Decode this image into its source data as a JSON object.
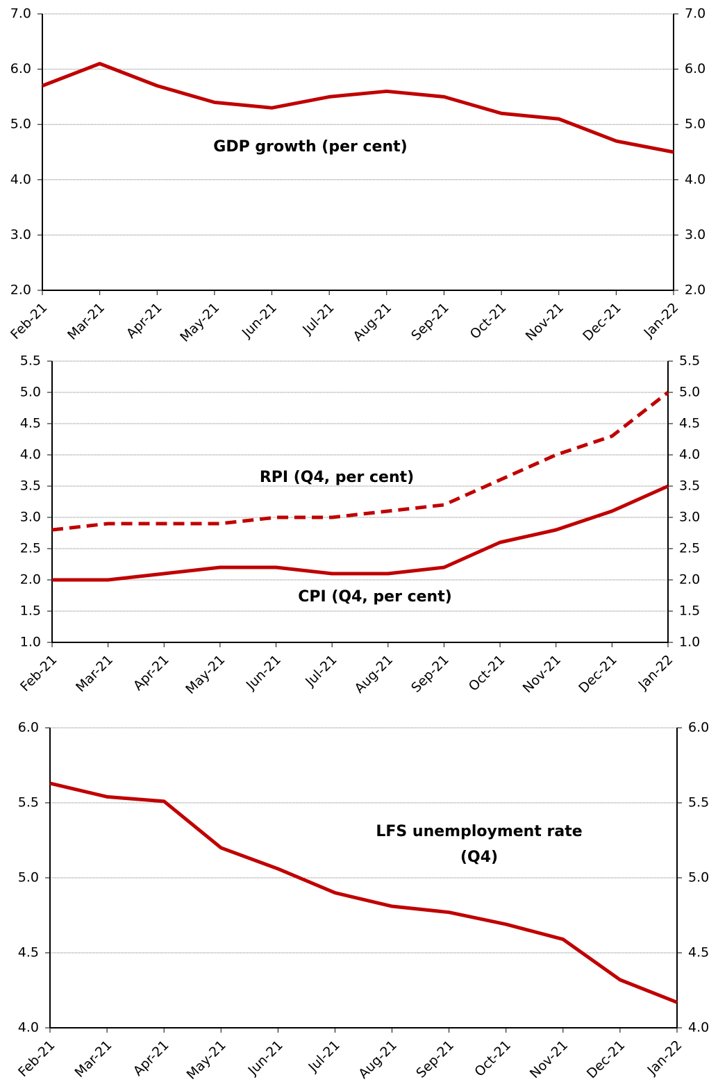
{
  "chart_data": [
    {
      "type": "line",
      "annotations": [
        "GDP growth (per cent)"
      ],
      "categories": [
        "Feb-21",
        "Mar-21",
        "Apr-21",
        "May-21",
        "Jun-21",
        "Jul-21",
        "Aug-21",
        "Sep-21",
        "Oct-21",
        "Nov-21",
        "Dec-21",
        "Jan-22"
      ],
      "series": [
        {
          "name": "GDP growth",
          "color": "#c00000",
          "style": "solid",
          "values": [
            5.7,
            6.1,
            5.7,
            5.4,
            5.3,
            5.5,
            5.6,
            5.5,
            5.2,
            5.1,
            4.7,
            4.5
          ]
        }
      ],
      "ylim": [
        2,
        7
      ],
      "yticks": [
        {
          "value": 2,
          "label": "2.0"
        },
        {
          "value": 3,
          "label": "3.0"
        },
        {
          "value": 4,
          "label": "4.0"
        },
        {
          "value": 5,
          "label": "5.0"
        },
        {
          "value": 6,
          "label": "6.0"
        },
        {
          "value": 7,
          "label": "7.0"
        }
      ],
      "grid": true,
      "right_axis": true
    },
    {
      "type": "line",
      "categories": [
        "Feb-21",
        "Mar-21",
        "Apr-21",
        "May-21",
        "Jun-21",
        "Jul-21",
        "Aug-21",
        "Sep-21",
        "Oct-21",
        "Nov-21",
        "Dec-21",
        "Jan-22"
      ],
      "series": [
        {
          "name": "RPI (Q4, per cent)",
          "color": "#c00000",
          "style": "dashed",
          "values": [
            2.8,
            2.9,
            2.9,
            2.9,
            3.0,
            3.0,
            3.1,
            3.2,
            3.6,
            4.0,
            4.3,
            5.0
          ]
        },
        {
          "name": "CPI (Q4, per cent)",
          "color": "#c00000",
          "style": "solid",
          "values": [
            2.0,
            2.0,
            2.1,
            2.2,
            2.2,
            2.1,
            2.1,
            2.2,
            2.6,
            2.8,
            3.1,
            3.5
          ]
        }
      ],
      "ylim": [
        1,
        5.5
      ],
      "yticks": [
        {
          "value": 1,
          "label": "1.0"
        },
        1.5,
        {
          "value": 2,
          "label": "2.0"
        },
        2.5,
        {
          "value": 3,
          "label": "3.0"
        },
        3.5,
        {
          "value": 4,
          "label": "4.0"
        },
        4.5,
        {
          "value": 5,
          "label": "5.0"
        },
        5.5
      ],
      "grid": true,
      "right_axis": true
    },
    {
      "type": "line",
      "annotations": [
        "LFS unemployment rate",
        "(Q4)"
      ],
      "categories": [
        "Feb-21",
        "Mar-21",
        "Apr-21",
        "May-21",
        "Jun-21",
        "Jul-21",
        "Aug-21",
        "Sep-21",
        "Oct-21",
        "Nov-21",
        "Dec-21",
        "Jan-22"
      ],
      "series": [
        {
          "name": "LFS unemployment rate",
          "color": "#c00000",
          "style": "solid",
          "values": [
            5.63,
            5.54,
            5.51,
            5.2,
            5.06,
            4.9,
            4.81,
            4.77,
            4.69,
            4.59,
            4.32,
            4.17
          ]
        }
      ],
      "ylim": [
        4,
        6
      ],
      "yticks": [
        {
          "value": 4,
          "label": "4.0"
        },
        4.5,
        {
          "value": 5,
          "label": "5.0"
        },
        5.5,
        {
          "value": 6,
          "label": "6.0"
        }
      ],
      "grid": true,
      "right_axis": true
    }
  ]
}
